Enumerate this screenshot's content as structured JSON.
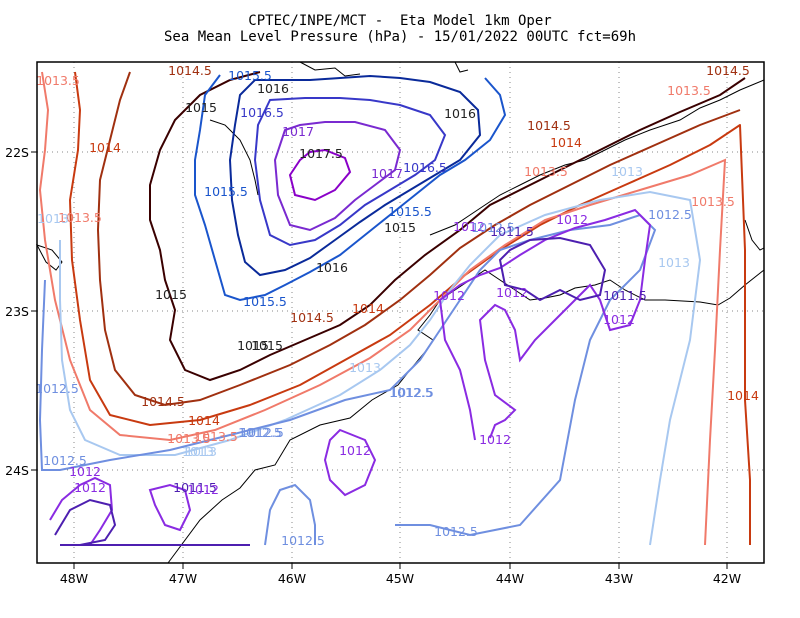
{
  "title": {
    "line1": "CPTEC/INPE/MCT -  Eta Model 1km Oper",
    "line2": "Sea Mean Level Pressure (hPa) - 15/01/2022 00UTC fct=69h"
  },
  "axes": {
    "x_ticks": [
      "48W",
      "47W",
      "46W",
      "45W",
      "44W",
      "43W",
      "42W"
    ],
    "y_ticks": [
      "22S",
      "23S",
      "24S"
    ]
  },
  "colors": {
    "1011.5": "#4d1fb0",
    "1012": "#8a2be2",
    "1012.5": "#6f8fe0",
    "1013": "#a8c8f0",
    "1013.5": "#f07a6a",
    "1014": "#c83a10",
    "1014.5": "#a03010",
    "1015": "#3a0000",
    "1015.5": "#1a55cc",
    "1016": "#0a2a9a",
    "1016.5": "#3838c8",
    "1017": "#7a2ad0",
    "1017.5": "#8a00c8"
  },
  "contour_labels": [
    "1013.5",
    "1014",
    "1013.5",
    "1012.5",
    "1014.5",
    "1015",
    "1015.5",
    "1016",
    "1016.5",
    "1017",
    "1017.5",
    "1017",
    "1016.5",
    "1015.5",
    "1015",
    "1016",
    "1015.5",
    "1015.5",
    "1016",
    "1015",
    "1014.5",
    "1015",
    "1014.5",
    "1014",
    "1013.5",
    "1013",
    "1012.5",
    "1013",
    "1012.5",
    "1012",
    "1011.5",
    "1012",
    "1012.5",
    "1012",
    "1012",
    "1012",
    "1012",
    "1011.5",
    "1012",
    "1012",
    "1012.5",
    "1013",
    "1012.5",
    "1013",
    "1013",
    "1013.5",
    "1013.5",
    "1014",
    "1014.5",
    "1013.5",
    "1014.5",
    "1014",
    "1013.5",
    "1013",
    "1012.5",
    "1012.5",
    "1012.5",
    "1012",
    "1011.5",
    "1012.5",
    "1012",
    "1014",
    "1015"
  ]
}
